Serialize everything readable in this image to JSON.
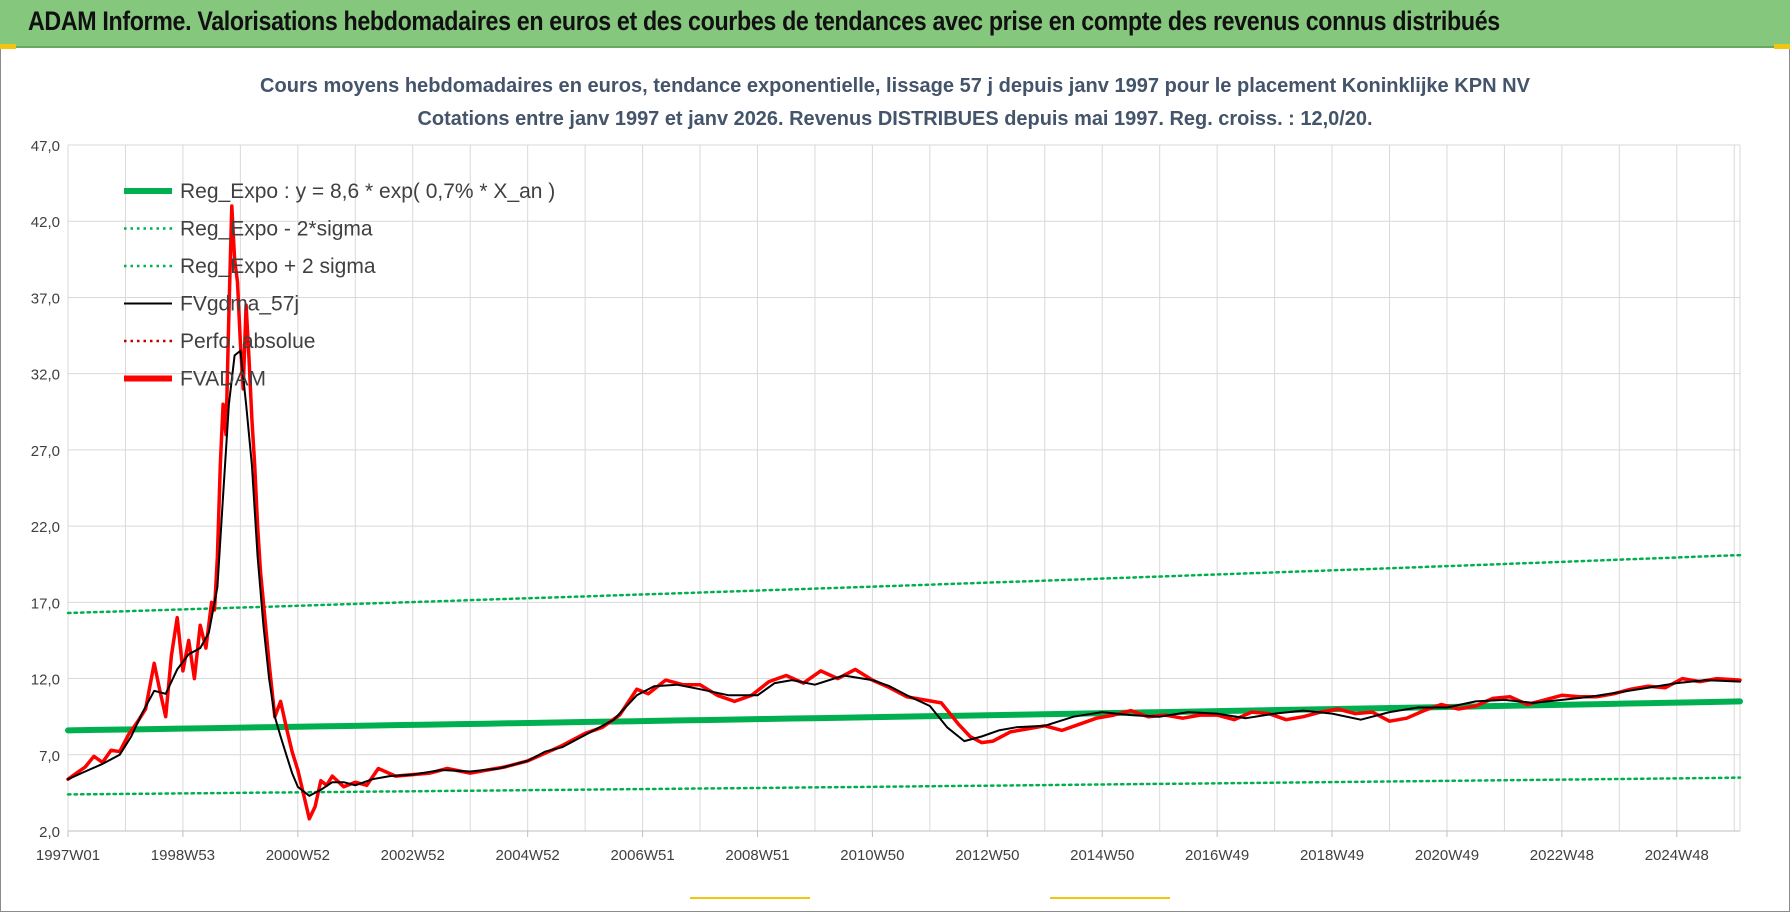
{
  "header": {
    "title": "ADAM Informe. Valorisations hebdomadaires en euros et des courbes de tendances avec prise en compte des revenus connus distribués"
  },
  "colors": {
    "banner": "#86c77e",
    "reg_expo": "#00b050",
    "fvgdma": "#000000",
    "fvadam": "#ff0000",
    "perfo": "#c00000",
    "grid": "#d9d9d9",
    "title_text": "#44546a"
  },
  "chart_data": {
    "type": "line",
    "title": "Cours moyens hebdomadaires en euros, tendance exponentielle, lissage 57 j depuis janv 1997 pour le placement Koninklijke KPN NV",
    "subtitle": "Cotations entre janv 1997 et janv 2026. Revenus DISTRIBUES depuis mai 1997.  Reg. croiss. : 12,0/20.",
    "xlabel": "",
    "ylabel": "",
    "ylim": [
      2.0,
      47.0
    ],
    "y_ticks": [
      "47,0",
      "42,0",
      "37,0",
      "32,0",
      "27,0",
      "22,0",
      "17,0",
      "12,0",
      "7,0",
      "2,0"
    ],
    "x_ticks": [
      "1997W01",
      "1998W53",
      "2000W52",
      "2002W52",
      "2004W52",
      "2006W51",
      "2008W51",
      "2010W50",
      "2012W50",
      "2014W50",
      "2016W49",
      "2018W49",
      "2020W49",
      "2022W48",
      "2024W48"
    ],
    "x_tick_years": [
      1997.0,
      1999.0,
      2001.0,
      2003.0,
      2005.0,
      2007.0,
      2009.0,
      2011.0,
      2013.0,
      2015.0,
      2017.0,
      2019.0,
      2021.0,
      2023.0,
      2025.0
    ],
    "x_range": [
      1997.0,
      2026.1
    ],
    "grid": true,
    "legend_position": "top-left",
    "legend": [
      {
        "label": "Reg_Expo : y = 8,6 * exp( 0,7% *  X_an )",
        "style": "solid-thick",
        "color": "#00b050"
      },
      {
        "label": "Reg_Expo - 2*sigma",
        "style": "dotted",
        "color": "#00b050"
      },
      {
        "label": "Reg_Expo + 2 sigma",
        "style": "dotted",
        "color": "#00b050"
      },
      {
        "label": "FVgdma_57j",
        "style": "solid-thin",
        "color": "#000000"
      },
      {
        "label": "Perfo. absolue",
        "style": "dotted",
        "color": "#c00000"
      },
      {
        "label": "FVADAM",
        "style": "solid-thick",
        "color": "#ff0000"
      }
    ],
    "series": [
      {
        "name": "Reg_Expo : y = 8,6 * exp( 0,7% *  X_an )",
        "x": [
          1997.0,
          2026.1
        ],
        "y": [
          8.6,
          10.5
        ]
      },
      {
        "name": "Reg_Expo - 2*sigma",
        "x": [
          1997.0,
          2026.1
        ],
        "y": [
          4.4,
          5.5
        ]
      },
      {
        "name": "Reg_Expo + 2 sigma",
        "x": [
          1997.0,
          2026.1
        ],
        "y": [
          16.3,
          20.1
        ]
      },
      {
        "name": "FVgdma_57j",
        "x": [
          1997.0,
          1997.3,
          1997.6,
          1997.9,
          1998.1,
          1998.3,
          1998.5,
          1998.7,
          1998.9,
          1999.1,
          1999.3,
          1999.45,
          1999.6,
          1999.7,
          1999.8,
          1999.9,
          2000.0,
          2000.1,
          2000.2,
          2000.3,
          2000.4,
          2000.5,
          2000.6,
          2000.7,
          2000.8,
          2000.9,
          2001.0,
          2001.2,
          2001.4,
          2001.6,
          2001.8,
          2002.0,
          2002.3,
          2002.6,
          2003.0,
          2003.5,
          2004.0,
          2004.5,
          2005.0,
          2005.3,
          2005.6,
          2006.0,
          2006.5,
          2006.9,
          2007.2,
          2007.6,
          2008.0,
          2008.5,
          2009.0,
          2009.3,
          2009.6,
          2010.0,
          2010.5,
          2011.0,
          2011.3,
          2011.6,
          2012.0,
          2012.3,
          2012.6,
          2012.9,
          2013.2,
          2013.5,
          2014.0,
          2014.5,
          2015.0,
          2015.5,
          2016.0,
          2016.5,
          2017.0,
          2017.5,
          2018.0,
          2018.5,
          2019.0,
          2019.5,
          2020.0,
          2020.5,
          2021.0,
          2021.5,
          2022.0,
          2022.5,
          2023.0,
          2023.5,
          2024.0,
          2024.5,
          2025.0,
          2025.5,
          2026.1
        ],
        "y": [
          5.4,
          5.9,
          6.4,
          7.0,
          8.2,
          9.8,
          11.2,
          11.0,
          12.6,
          13.6,
          14.0,
          15.0,
          18.0,
          24.0,
          30.0,
          33.2,
          33.5,
          30.0,
          26.0,
          20.0,
          15.5,
          12.0,
          9.5,
          8.2,
          7.0,
          5.8,
          4.9,
          4.3,
          4.7,
          5.2,
          5.2,
          5.0,
          5.4,
          5.6,
          5.7,
          6.0,
          5.9,
          6.1,
          6.6,
          7.2,
          7.5,
          8.3,
          9.3,
          10.9,
          11.5,
          11.6,
          11.3,
          10.9,
          10.9,
          11.7,
          11.9,
          11.6,
          12.2,
          11.9,
          11.5,
          10.9,
          10.2,
          8.8,
          7.9,
          8.2,
          8.6,
          8.8,
          8.9,
          9.5,
          9.8,
          9.6,
          9.5,
          9.8,
          9.7,
          9.4,
          9.7,
          9.9,
          9.7,
          9.3,
          9.8,
          10.1,
          10.1,
          10.5,
          10.6,
          10.4,
          10.6,
          10.8,
          11.1,
          11.4,
          11.7,
          11.9,
          11.8
        ]
      },
      {
        "name": "FVADAM",
        "x": [
          1997.0,
          1997.15,
          1997.3,
          1997.45,
          1997.6,
          1997.75,
          1997.9,
          1998.05,
          1998.2,
          1998.35,
          1998.5,
          1998.6,
          1998.7,
          1998.8,
          1998.9,
          1999.0,
          1999.1,
          1999.2,
          1999.3,
          1999.4,
          1999.5,
          1999.55,
          1999.6,
          1999.65,
          1999.7,
          1999.75,
          1999.8,
          1999.85,
          1999.9,
          1999.95,
          2000.0,
          2000.05,
          2000.1,
          2000.15,
          2000.2,
          2000.25,
          2000.3,
          2000.35,
          2000.4,
          2000.5,
          2000.6,
          2000.7,
          2000.8,
          2000.9,
          2001.0,
          2001.1,
          2001.2,
          2001.3,
          2001.4,
          2001.5,
          2001.6,
          2001.8,
          2002.0,
          2002.2,
          2002.4,
          2002.7,
          2003.0,
          2003.3,
          2003.6,
          2004.0,
          2004.3,
          2004.6,
          2005.0,
          2005.3,
          2005.6,
          2006.0,
          2006.3,
          2006.6,
          2006.9,
          2007.1,
          2007.4,
          2007.7,
          2008.0,
          2008.3,
          2008.6,
          2008.9,
          2009.2,
          2009.5,
          2009.8,
          2010.1,
          2010.4,
          2010.7,
          2011.0,
          2011.3,
          2011.6,
          2011.9,
          2012.2,
          2012.5,
          2012.7,
          2012.9,
          2013.1,
          2013.4,
          2013.7,
          2014.0,
          2014.3,
          2014.6,
          2014.9,
          2015.2,
          2015.5,
          2015.8,
          2016.1,
          2016.4,
          2016.7,
          2017.0,
          2017.3,
          2017.6,
          2017.9,
          2018.2,
          2018.5,
          2018.8,
          2019.1,
          2019.4,
          2019.7,
          2020.0,
          2020.3,
          2020.6,
          2020.9,
          2021.2,
          2021.5,
          2021.8,
          2022.1,
          2022.4,
          2022.7,
          2023.0,
          2023.3,
          2023.6,
          2023.9,
          2024.2,
          2024.5,
          2024.8,
          2025.1,
          2025.4,
          2025.7,
          2026.1
        ],
        "y": [
          5.4,
          5.8,
          6.2,
          6.9,
          6.5,
          7.3,
          7.2,
          8.3,
          9.1,
          10.0,
          13.0,
          11.2,
          9.5,
          13.5,
          16.0,
          12.5,
          14.5,
          12.0,
          15.5,
          14.0,
          17.0,
          16.5,
          20.0,
          26.0,
          30.0,
          28.0,
          36.0,
          43.0,
          39.5,
          38.0,
          34.0,
          31.0,
          36.5,
          33.0,
          29.0,
          26.0,
          22.0,
          19.0,
          17.0,
          13.0,
          9.5,
          10.5,
          8.8,
          7.2,
          6.0,
          4.4,
          2.8,
          3.6,
          5.3,
          5.0,
          5.6,
          4.9,
          5.2,
          5.0,
          6.1,
          5.6,
          5.7,
          5.8,
          6.1,
          5.8,
          6.0,
          6.2,
          6.6,
          7.1,
          7.6,
          8.4,
          8.8,
          9.6,
          11.3,
          11.0,
          11.9,
          11.6,
          11.6,
          10.9,
          10.5,
          10.9,
          11.8,
          12.2,
          11.7,
          12.5,
          12.0,
          12.6,
          11.9,
          11.4,
          10.8,
          10.6,
          10.4,
          9.0,
          8.2,
          7.8,
          7.9,
          8.5,
          8.7,
          8.9,
          8.6,
          9.0,
          9.4,
          9.6,
          9.9,
          9.5,
          9.6,
          9.4,
          9.6,
          9.6,
          9.3,
          9.8,
          9.7,
          9.3,
          9.5,
          9.8,
          10.0,
          9.7,
          9.8,
          9.2,
          9.4,
          9.9,
          10.3,
          10.0,
          10.2,
          10.7,
          10.8,
          10.3,
          10.6,
          10.9,
          10.8,
          10.8,
          11.0,
          11.3,
          11.5,
          11.4,
          12.0,
          11.8,
          12.0,
          11.9
        ]
      }
    ]
  }
}
